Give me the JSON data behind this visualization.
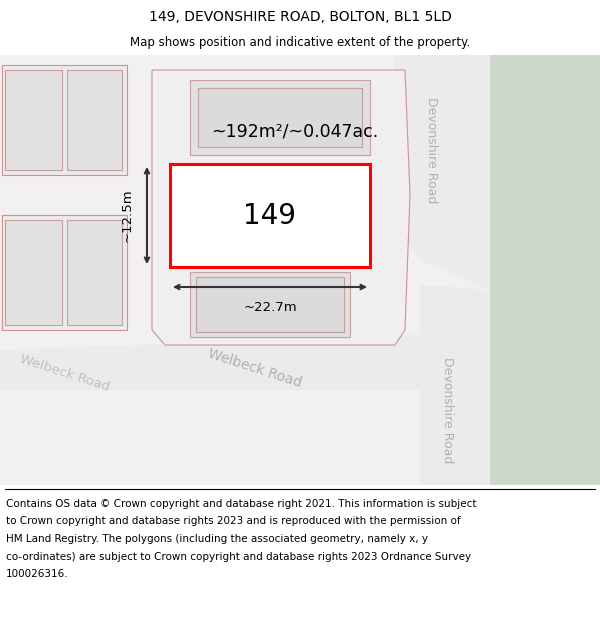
{
  "title": "149, DEVONSHIRE ROAD, BOLTON, BL1 5LD",
  "subtitle": "Map shows position and indicative extent of the property.",
  "footer_lines": [
    "Contains OS data © Crown copyright and database right 2021. This information is subject",
    "to Crown copyright and database rights 2023 and is reproduced with the permission of",
    "HM Land Registry. The polygons (including the associated geometry, namely x, y",
    "co-ordinates) are subject to Crown copyright and database rights 2023 Ordnance Survey",
    "100026316."
  ],
  "bg_color": "#f2f0f0",
  "white": "#ffffff",
  "road_green": "#ccd9c8",
  "building_fill": "#e2e0e0",
  "building_stroke": "#d4a0a0",
  "plot_stroke": "#ff0000",
  "dim_color": "#333333",
  "area_text": "~192m²/~0.047ac.",
  "number_text": "149",
  "dim_width": "~22.7m",
  "dim_height": "~12.5m",
  "road_text_color": "#b0b0b0",
  "title_fontsize": 10,
  "subtitle_fontsize": 8.5,
  "footer_fontsize": 7.5
}
